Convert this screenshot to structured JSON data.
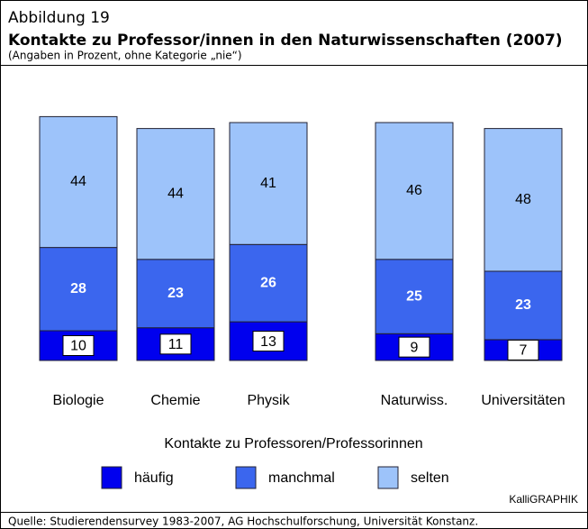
{
  "chart_data": {
    "type": "stacked_bar",
    "figure_label": "Abbildung 19",
    "title": "Kontakte zu Professor/innen in den Naturwissenschaften (2007)",
    "subtitle": "(Angaben in Prozent, ohne Kategorie „nie“)",
    "categories": [
      "Biologie",
      "Chemie",
      "Physik",
      "Naturwiss.",
      "Universitäten"
    ],
    "series": [
      {
        "name": "häufig",
        "color": "#0000ee",
        "values": [
          10,
          11,
          13,
          9,
          7
        ]
      },
      {
        "name": "manchmal",
        "color": "#3b66ee",
        "values": [
          28,
          23,
          26,
          25,
          23
        ]
      },
      {
        "name": "selten",
        "color": "#9dc3fa",
        "values": [
          44,
          44,
          41,
          46,
          48
        ]
      }
    ],
    "legend_title": "Kontakte zu Professoren/Professorinnen",
    "credit": "KalliGRAPHIK",
    "source": "Quelle: Studierendensurvey 1983-2007, AG Hochschulforschung, Universität Konstanz."
  }
}
